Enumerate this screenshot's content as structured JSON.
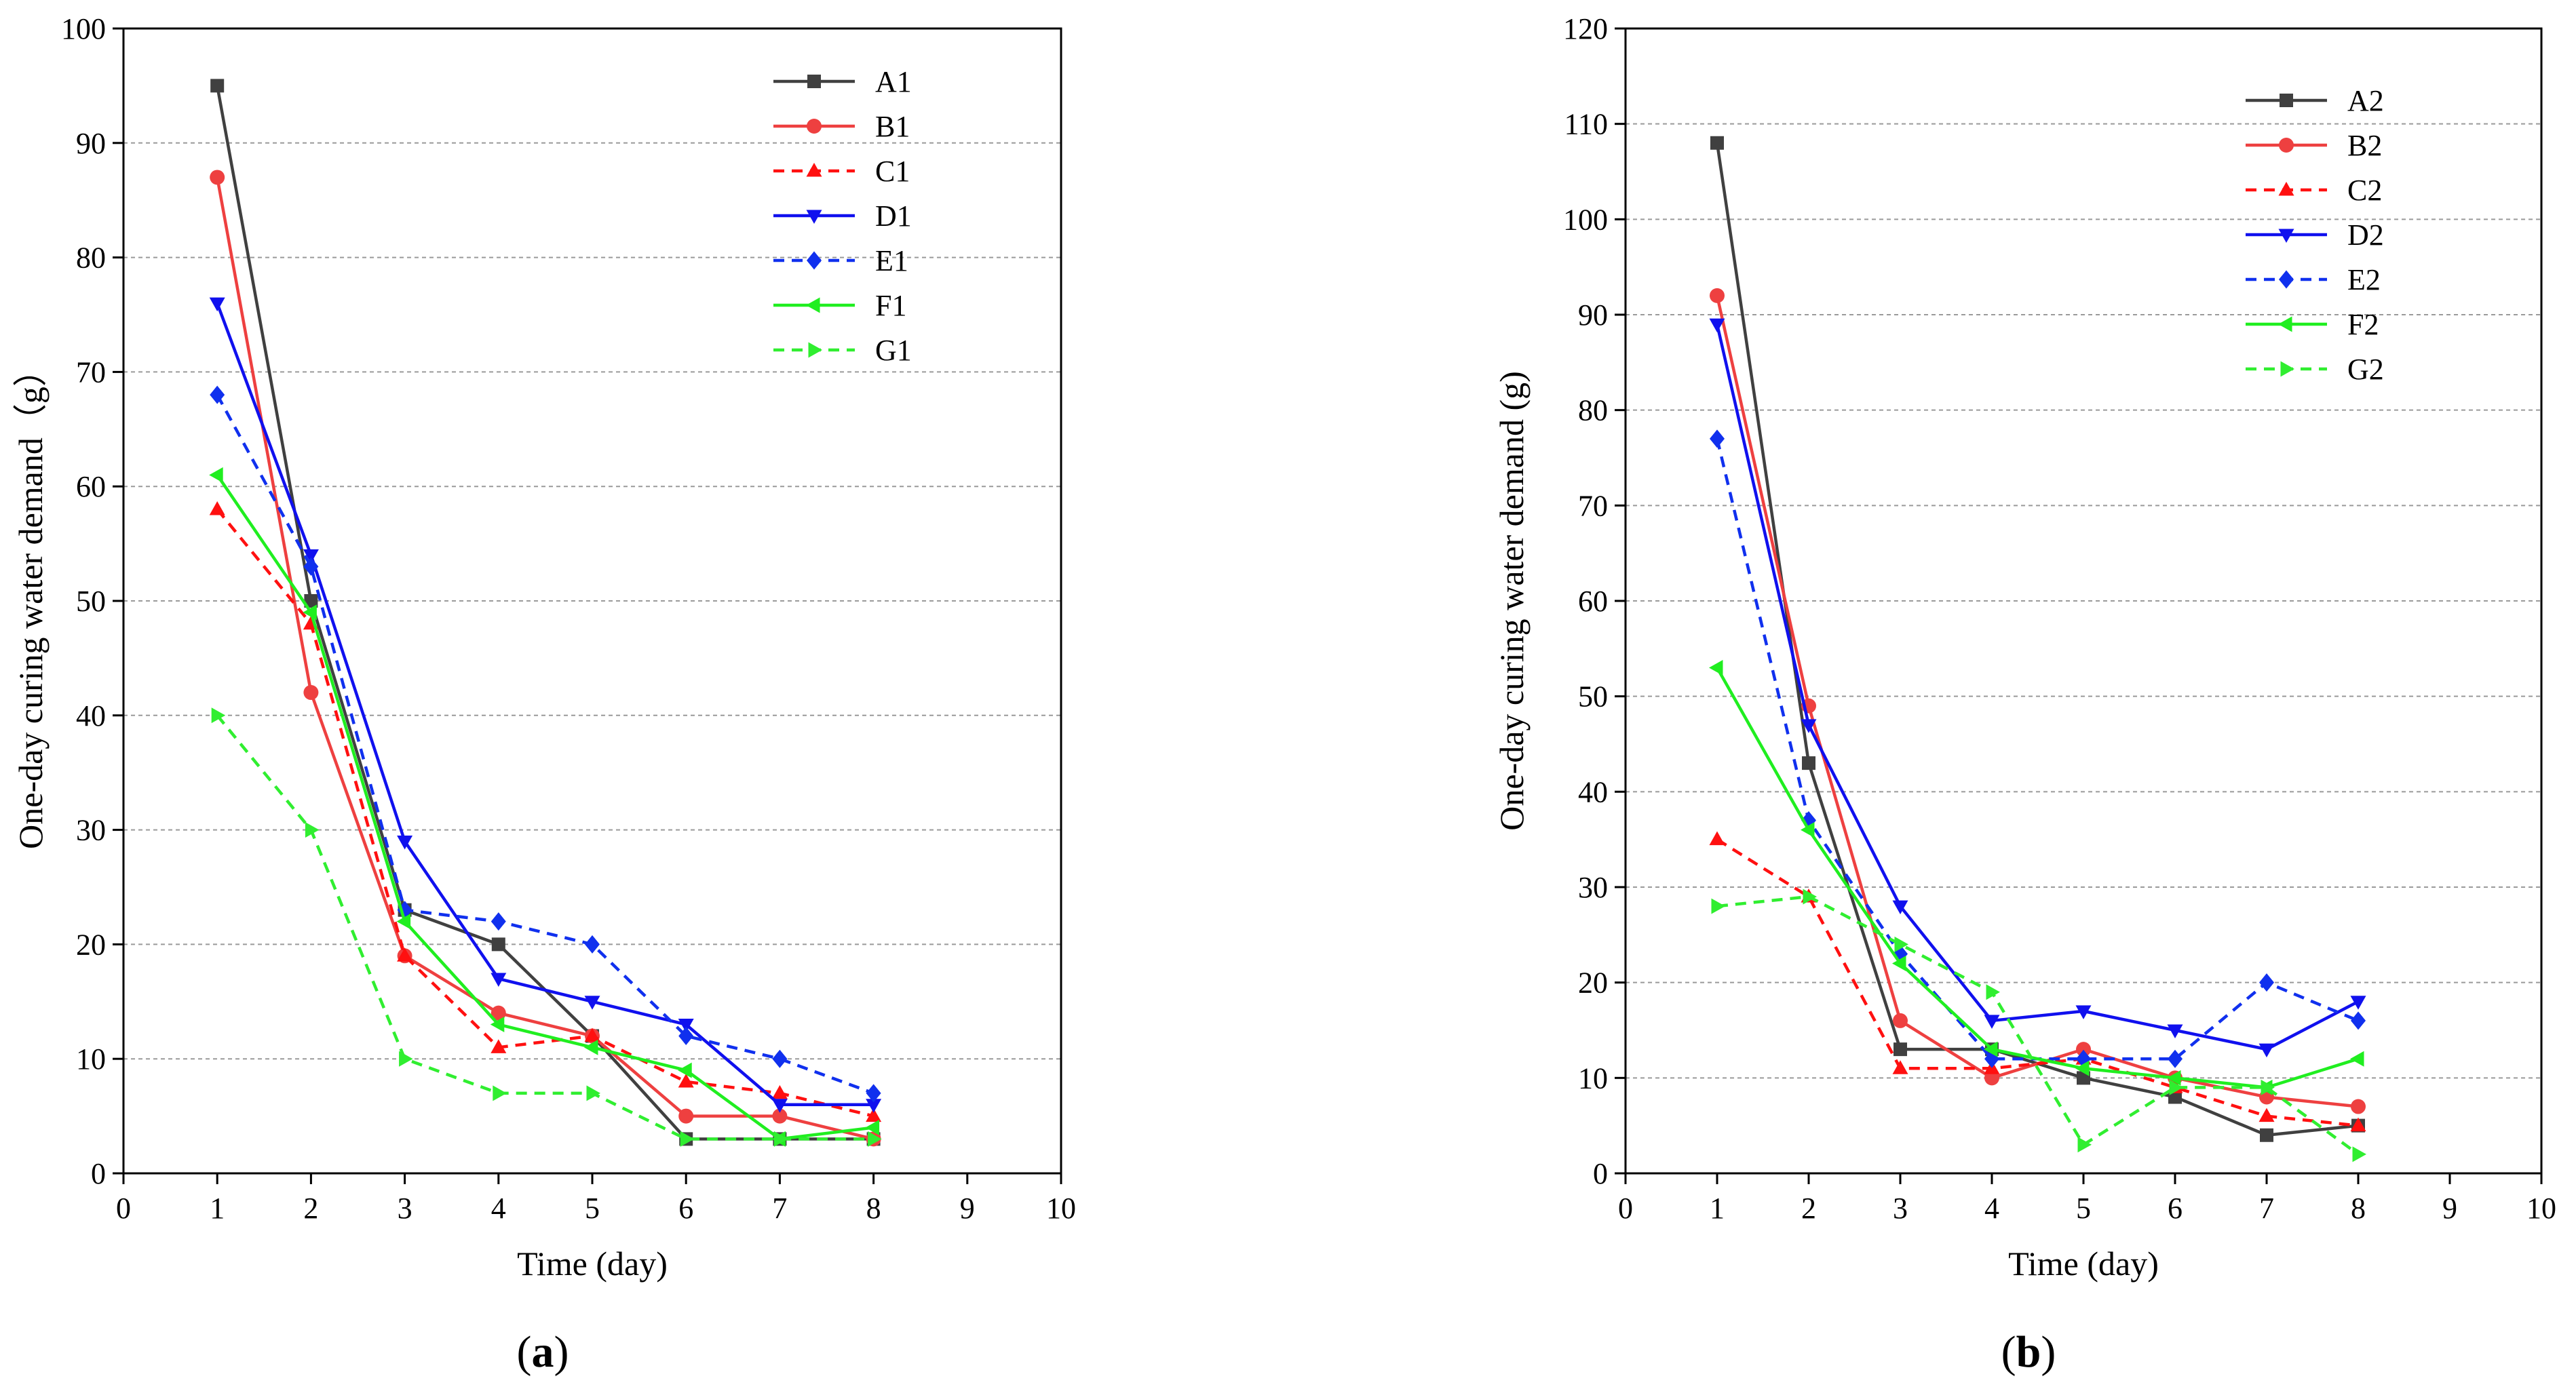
{
  "figure": {
    "caption_a": {
      "open": "(",
      "letter": "a",
      "close": ")"
    },
    "caption_b": {
      "open": "(",
      "letter": "b",
      "close": ")"
    }
  },
  "chart_data": [
    {
      "type": "line",
      "panel": "a",
      "xlabel": "Time (day)",
      "ylabel": "One-day curing water demand（g）",
      "xlim": [
        0,
        10
      ],
      "ylim": [
        0,
        100
      ],
      "xticks": [
        0,
        1,
        2,
        3,
        4,
        5,
        6,
        7,
        8,
        9,
        10
      ],
      "yticks": [
        0,
        10,
        20,
        30,
        40,
        50,
        60,
        70,
        80,
        90,
        100
      ],
      "grid": "horizontal dashed",
      "legend_position": "top-right",
      "x": [
        1,
        2,
        3,
        4,
        5,
        6,
        7,
        8
      ],
      "series": [
        {
          "name": "A1",
          "color": "#404040",
          "marker": "square",
          "dashed": false,
          "values": [
            95,
            50,
            23,
            20,
            12,
            3,
            3,
            3
          ]
        },
        {
          "name": "B1",
          "color": "#ee4040",
          "marker": "circle",
          "dashed": false,
          "values": [
            87,
            42,
            19,
            14,
            12,
            5,
            5,
            3
          ]
        },
        {
          "name": "C1",
          "color": "#ff1010",
          "marker": "triangle-up",
          "dashed": true,
          "values": [
            58,
            48,
            19,
            11,
            12,
            8,
            7,
            5
          ]
        },
        {
          "name": "D1",
          "color": "#1010ee",
          "marker": "triangle-down",
          "dashed": false,
          "values": [
            76,
            54,
            29,
            17,
            15,
            13,
            6,
            6
          ]
        },
        {
          "name": "E1",
          "color": "#1030ee",
          "marker": "diamond",
          "dashed": true,
          "values": [
            68,
            53,
            23,
            22,
            20,
            12,
            10,
            7
          ]
        },
        {
          "name": "F1",
          "color": "#20ee20",
          "marker": "triangle-left",
          "dashed": false,
          "values": [
            61,
            49,
            22,
            13,
            11,
            9,
            3,
            4
          ]
        },
        {
          "name": "G1",
          "color": "#30ee30",
          "marker": "triangle-right",
          "dashed": true,
          "values": [
            40,
            30,
            10,
            7,
            7,
            3,
            3,
            3
          ]
        }
      ]
    },
    {
      "type": "line",
      "panel": "b",
      "xlabel": "Time (day)",
      "ylabel": "One-day curing water demand (g)",
      "xlim": [
        0,
        10
      ],
      "ylim": [
        0,
        120
      ],
      "xticks": [
        0,
        1,
        2,
        3,
        4,
        5,
        6,
        7,
        8,
        9,
        10
      ],
      "yticks": [
        0,
        10,
        20,
        30,
        40,
        50,
        60,
        70,
        80,
        90,
        100,
        110,
        120
      ],
      "grid": "horizontal dashed",
      "legend_position": "top-right",
      "x": [
        1,
        2,
        3,
        4,
        5,
        6,
        7,
        8
      ],
      "series": [
        {
          "name": "A2",
          "color": "#404040",
          "marker": "square",
          "dashed": false,
          "values": [
            108,
            43,
            13,
            13,
            10,
            8,
            4,
            5
          ]
        },
        {
          "name": "B2",
          "color": "#ee4040",
          "marker": "circle",
          "dashed": false,
          "values": [
            92,
            49,
            16,
            10,
            13,
            10,
            8,
            7
          ]
        },
        {
          "name": "C2",
          "color": "#ff1010",
          "marker": "triangle-up",
          "dashed": true,
          "values": [
            35,
            29,
            11,
            11,
            12,
            9,
            6,
            5
          ]
        },
        {
          "name": "D2",
          "color": "#1010ee",
          "marker": "triangle-down",
          "dashed": false,
          "values": [
            89,
            47,
            28,
            16,
            17,
            15,
            13,
            18
          ]
        },
        {
          "name": "E2",
          "color": "#1030ee",
          "marker": "diamond",
          "dashed": true,
          "values": [
            77,
            37,
            23,
            12,
            12,
            12,
            20,
            16
          ]
        },
        {
          "name": "F2",
          "color": "#20ee20",
          "marker": "triangle-left",
          "dashed": false,
          "values": [
            53,
            36,
            22,
            13,
            11,
            10,
            9,
            12
          ]
        },
        {
          "name": "G2",
          "color": "#30ee30",
          "marker": "triangle-right",
          "dashed": true,
          "values": [
            28,
            29,
            24,
            19,
            3,
            9,
            9,
            2
          ]
        }
      ]
    }
  ]
}
